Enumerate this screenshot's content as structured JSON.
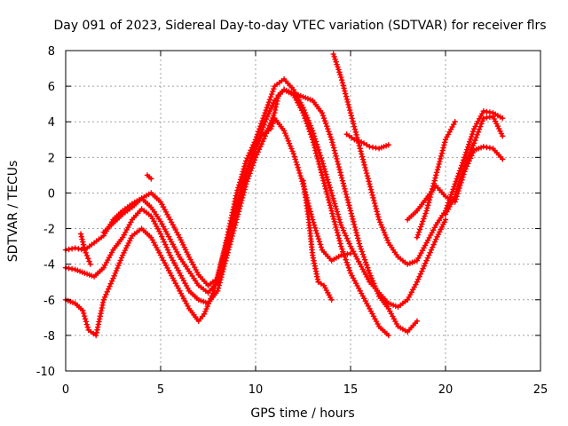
{
  "chart_data": {
    "type": "scatter",
    "title": "Day 091 of 2023, Sidereal Day-to-day VTEC variation (SDTVAR) for receiver flrs",
    "xlabel": "GPS time / hours",
    "ylabel": "SDTVAR / TECUs",
    "xlim": [
      0,
      25
    ],
    "ylim": [
      -10,
      8
    ],
    "xticks": [
      0,
      5,
      10,
      15,
      20,
      25
    ],
    "yticks": [
      -10,
      -8,
      -6,
      -4,
      -2,
      0,
      2,
      4,
      6,
      8
    ],
    "grid": true,
    "legend": "none",
    "marker": "plus",
    "color": "#ff0000",
    "series": [
      {
        "x": [
          0.0,
          0.5,
          0.9,
          1.2,
          1.6,
          2.0,
          2.5,
          3.0,
          3.5,
          4.0,
          4.5,
          5.0,
          5.5,
          6.0,
          6.5,
          7.0,
          7.3,
          7.8,
          8.3,
          8.8,
          9.3,
          9.8,
          10.3,
          10.8,
          11.0,
          11.5,
          12.0,
          12.5,
          13.0,
          13.5,
          14.0,
          14.5,
          15.0
        ],
        "y": [
          -6.0,
          -6.2,
          -6.6,
          -7.7,
          -8.0,
          -6.0,
          -4.8,
          -3.5,
          -2.4,
          -2.0,
          -2.5,
          -3.5,
          -4.5,
          -5.5,
          -6.5,
          -7.2,
          -6.8,
          -5.5,
          -3.5,
          -1.5,
          0.5,
          2.0,
          3.2,
          3.6,
          4.2,
          3.5,
          2.2,
          0.5,
          -1.5,
          -3.2,
          -3.8,
          -3.5,
          -3.4
        ]
      },
      {
        "x": [
          0.0,
          0.5,
          1.0,
          1.5,
          2.0,
          2.5,
          3.0,
          3.5,
          4.0,
          4.5,
          5.0,
          5.5,
          6.0,
          6.5,
          7.0,
          7.5,
          8.0,
          8.5,
          9.0,
          9.5,
          10.0,
          10.5,
          11.0,
          11.2,
          11.5,
          12.0,
          12.5,
          13.0,
          13.5,
          14.0,
          14.5,
          15.0,
          15.5,
          16.0,
          16.5,
          17.0
        ],
        "y": [
          -4.2,
          -4.3,
          -4.5,
          -4.7,
          -4.2,
          -3.2,
          -2.5,
          -1.5,
          -0.9,
          -1.3,
          -2.3,
          -3.5,
          -4.5,
          -5.5,
          -6.0,
          -6.2,
          -5.5,
          -3.5,
          -1.5,
          0.5,
          2.0,
          3.2,
          4.5,
          5.5,
          5.8,
          5.5,
          4.5,
          3.0,
          1.0,
          -1.0,
          -3.0,
          -4.5,
          -5.5,
          -6.5,
          -7.5,
          -8.0
        ]
      },
      {
        "x": [
          0.0,
          0.5,
          1.0,
          1.5,
          2.0,
          2.5,
          3.0,
          3.5,
          4.0,
          4.5,
          5.0,
          5.5,
          6.0,
          6.5,
          7.0,
          7.5,
          8.0,
          8.5,
          9.0,
          9.5,
          10.0,
          10.5,
          11.0,
          11.5,
          12.0,
          12.5,
          13.0,
          13.5,
          14.0,
          14.5,
          15.0,
          15.5,
          16.0,
          16.5,
          17.0,
          17.5,
          18.0,
          18.5
        ],
        "y": [
          -3.2,
          -3.1,
          -3.2,
          -2.8,
          -2.4,
          -1.5,
          -1.0,
          -0.6,
          -0.3,
          -0.8,
          -1.6,
          -2.6,
          -3.6,
          -4.4,
          -5.2,
          -5.6,
          -5.0,
          -3.0,
          -1.0,
          1.0,
          2.5,
          4.0,
          5.2,
          5.8,
          5.6,
          5.4,
          5.2,
          4.5,
          3.0,
          1.0,
          -1.0,
          -3.0,
          -4.5,
          -5.8,
          -6.5,
          -7.5,
          -7.8,
          -7.2
        ]
      },
      {
        "x": [
          2.0,
          2.5,
          3.0,
          3.5,
          4.0,
          4.5,
          5.0,
          5.5,
          6.0,
          6.5,
          7.0,
          7.5,
          8.0,
          8.5,
          9.0,
          9.5,
          10.0,
          10.5,
          11.0,
          11.5,
          12.0,
          12.5,
          13.0,
          13.5,
          14.0,
          14.5,
          15.0,
          15.5,
          16.0,
          16.5,
          17.0,
          17.5,
          18.0,
          18.5,
          19.0,
          19.5,
          20.0
        ],
        "y": [
          -2.2,
          -1.7,
          -1.2,
          -0.8,
          -0.3,
          0.0,
          -0.5,
          -1.5,
          -2.5,
          -3.6,
          -4.6,
          -5.2,
          -4.8,
          -2.5,
          0.0,
          1.8,
          3.0,
          4.5,
          6.0,
          6.4,
          5.8,
          4.8,
          3.5,
          1.8,
          0.0,
          -1.8,
          -3.0,
          -4.0,
          -5.0,
          -5.6,
          -6.2,
          -6.4,
          -6.0,
          -5.0,
          -3.8,
          -2.6,
          -1.5
        ]
      },
      {
        "x": [
          14.1,
          14.5,
          15.0,
          15.5,
          16.0,
          16.5,
          17.0,
          17.5,
          18.0,
          18.5,
          19.0,
          19.5,
          20.0,
          20.5,
          21.0,
          21.5,
          22.0,
          22.5,
          23.0
        ],
        "y": [
          7.8,
          6.5,
          4.5,
          2.5,
          0.5,
          -1.5,
          -2.8,
          -3.6,
          -4.0,
          -3.8,
          -2.8,
          -1.8,
          -1.0,
          0.5,
          2.0,
          3.6,
          4.6,
          4.5,
          4.2
        ]
      },
      {
        "x": [
          14.8,
          15.2,
          15.7,
          16.0,
          16.5,
          17.0
        ],
        "y": [
          3.3,
          3.0,
          2.8,
          2.6,
          2.5,
          2.7
        ]
      },
      {
        "x": [
          18.0,
          18.5,
          19.0,
          19.5,
          20.0,
          20.5,
          21.0,
          21.5,
          22.0,
          22.5,
          23.0
        ],
        "y": [
          -1.5,
          -1.0,
          -0.3,
          0.4,
          -0.2,
          -0.5,
          1.2,
          2.4,
          2.6,
          2.5,
          1.9
        ]
      },
      {
        "x": [
          18.5,
          19.0,
          19.5,
          20.0,
          20.5
        ],
        "y": [
          -2.5,
          -1.0,
          1.0,
          3.0,
          4.0
        ]
      },
      {
        "x": [
          20.0,
          20.5,
          21.0,
          21.5,
          22.0,
          22.5,
          23.0
        ],
        "y": [
          -1.2,
          -0.2,
          1.5,
          2.8,
          4.2,
          4.3,
          3.2
        ]
      },
      {
        "x": [
          12.5,
          12.8,
          13.0,
          13.3,
          13.6,
          14.0
        ],
        "y": [
          0.7,
          -1.5,
          -3.5,
          -5.0,
          -5.2,
          -6.0
        ]
      },
      {
        "x": [
          4.3,
          4.5
        ],
        "y": [
          1.0,
          0.8
        ]
      },
      {
        "x": [
          0.8,
          1.0,
          1.3
        ],
        "y": [
          -2.3,
          -3.2,
          -4.0
        ]
      }
    ]
  }
}
